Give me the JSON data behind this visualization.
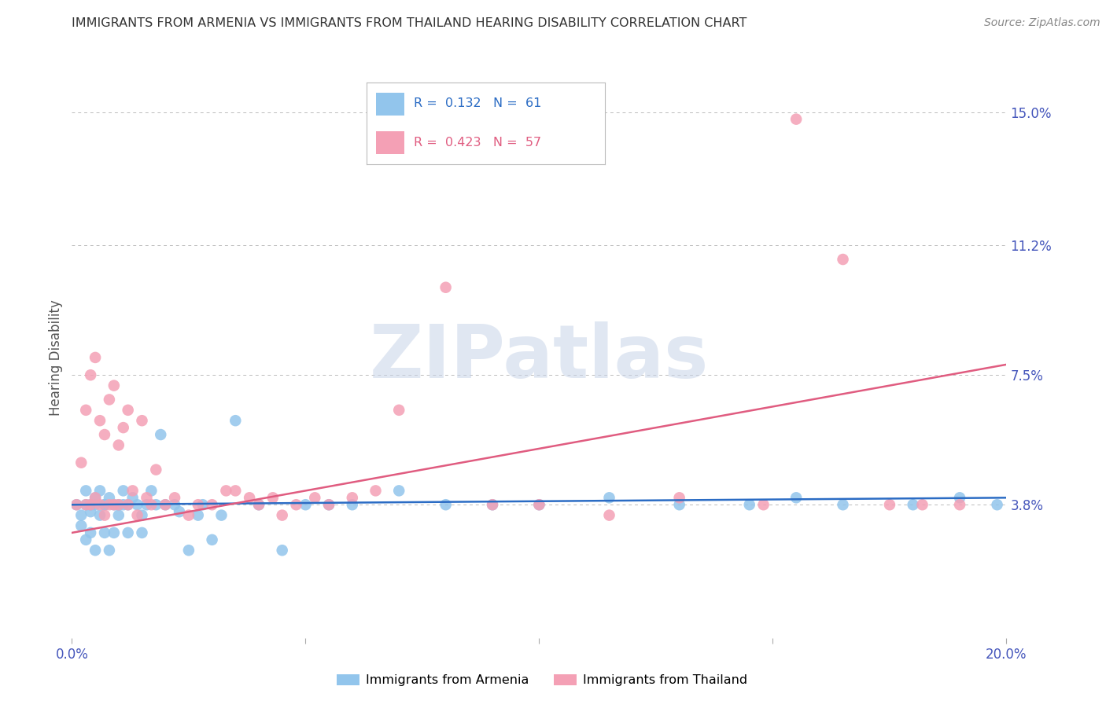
{
  "title": "IMMIGRANTS FROM ARMENIA VS IMMIGRANTS FROM THAILAND HEARING DISABILITY CORRELATION CHART",
  "source": "Source: ZipAtlas.com",
  "ylabel": "Hearing Disability",
  "xlim": [
    0.0,
    0.2
  ],
  "ylim": [
    0.0,
    0.16
  ],
  "yticks_right": [
    0.038,
    0.075,
    0.112,
    0.15
  ],
  "ytick_labels_right": [
    "3.8%",
    "7.5%",
    "11.2%",
    "15.0%"
  ],
  "xticks": [
    0.0,
    0.05,
    0.1,
    0.15,
    0.2
  ],
  "xtick_labels": [
    "0.0%",
    "",
    "",
    "",
    "20.0%"
  ],
  "armenia_color": "#92C5EC",
  "thailand_color": "#F4A0B5",
  "armenia_line_color": "#2B6CC4",
  "thailand_line_color": "#E05C80",
  "watermark_text": "ZIPatlas",
  "watermark_color": "#c8d4e8",
  "background_color": "#ffffff",
  "grid_color": "#bbbbbb",
  "title_color": "#333333",
  "right_tick_color": "#4455BB",
  "ylabel_color": "#555555",
  "source_color": "#888888",
  "legend_text_armenia_color": "#2B6CC4",
  "legend_text_thailand_color": "#E05C80",
  "armenia_line_y0": 0.038,
  "armenia_line_y1": 0.04,
  "thailand_line_y0": 0.03,
  "thailand_line_y1": 0.078,
  "armenia_scatter_x": [
    0.001,
    0.002,
    0.002,
    0.003,
    0.003,
    0.003,
    0.004,
    0.004,
    0.004,
    0.005,
    0.005,
    0.005,
    0.006,
    0.006,
    0.007,
    0.007,
    0.007,
    0.008,
    0.008,
    0.009,
    0.009,
    0.01,
    0.01,
    0.011,
    0.011,
    0.012,
    0.012,
    0.013,
    0.014,
    0.015,
    0.015,
    0.016,
    0.017,
    0.018,
    0.019,
    0.02,
    0.022,
    0.023,
    0.025,
    0.027,
    0.028,
    0.03,
    0.032,
    0.035,
    0.04,
    0.045,
    0.05,
    0.055,
    0.06,
    0.07,
    0.08,
    0.09,
    0.1,
    0.115,
    0.13,
    0.145,
    0.155,
    0.165,
    0.18,
    0.19,
    0.198
  ],
  "armenia_scatter_y": [
    0.038,
    0.032,
    0.035,
    0.042,
    0.028,
    0.038,
    0.036,
    0.03,
    0.038,
    0.04,
    0.025,
    0.038,
    0.035,
    0.042,
    0.038,
    0.03,
    0.038,
    0.04,
    0.025,
    0.03,
    0.038,
    0.035,
    0.038,
    0.042,
    0.038,
    0.03,
    0.038,
    0.04,
    0.038,
    0.03,
    0.035,
    0.038,
    0.042,
    0.038,
    0.058,
    0.038,
    0.038,
    0.036,
    0.025,
    0.035,
    0.038,
    0.028,
    0.035,
    0.062,
    0.038,
    0.025,
    0.038,
    0.038,
    0.038,
    0.042,
    0.038,
    0.038,
    0.038,
    0.04,
    0.038,
    0.038,
    0.04,
    0.038,
    0.038,
    0.04,
    0.038
  ],
  "thailand_scatter_x": [
    0.001,
    0.002,
    0.003,
    0.003,
    0.004,
    0.004,
    0.005,
    0.005,
    0.006,
    0.006,
    0.007,
    0.007,
    0.008,
    0.008,
    0.009,
    0.009,
    0.01,
    0.01,
    0.011,
    0.012,
    0.012,
    0.013,
    0.014,
    0.015,
    0.016,
    0.017,
    0.018,
    0.02,
    0.022,
    0.025,
    0.027,
    0.03,
    0.033,
    0.035,
    0.038,
    0.04,
    0.043,
    0.045,
    0.048,
    0.052,
    0.055,
    0.06,
    0.065,
    0.07,
    0.08,
    0.09,
    0.1,
    0.115,
    0.13,
    0.148,
    0.155,
    0.165,
    0.175,
    0.182,
    0.19
  ],
  "thailand_scatter_y": [
    0.038,
    0.05,
    0.038,
    0.065,
    0.038,
    0.075,
    0.04,
    0.08,
    0.038,
    0.062,
    0.035,
    0.058,
    0.038,
    0.068,
    0.038,
    0.072,
    0.038,
    0.055,
    0.06,
    0.038,
    0.065,
    0.042,
    0.035,
    0.062,
    0.04,
    0.038,
    0.048,
    0.038,
    0.04,
    0.035,
    0.038,
    0.038,
    0.042,
    0.042,
    0.04,
    0.038,
    0.04,
    0.035,
    0.038,
    0.04,
    0.038,
    0.04,
    0.042,
    0.065,
    0.1,
    0.038,
    0.038,
    0.035,
    0.04,
    0.038,
    0.148,
    0.108,
    0.038,
    0.038,
    0.038
  ]
}
